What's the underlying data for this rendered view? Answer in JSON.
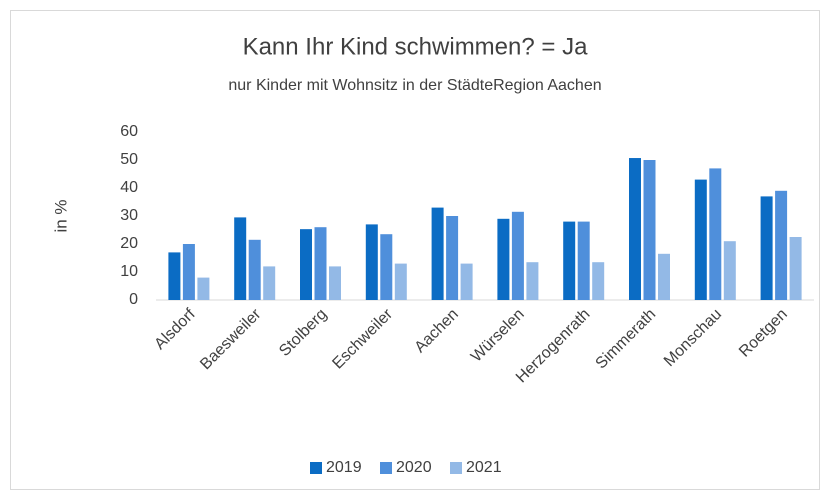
{
  "chart_data": {
    "type": "bar",
    "title": "Kann Ihr Kind schwimmen? = Ja",
    "subtitle": "nur Kinder mit Wohnsitz in der StädteRegion Aachen",
    "y_label": "in %",
    "categories": [
      "Alsdorf",
      "Baesweiler",
      "Stolberg",
      "Eschweiler",
      "Aachen",
      "Würselen",
      "Herzogenrath",
      "Simmerath",
      "Monschau",
      "Roetgen"
    ],
    "series": [
      {
        "name": "2019",
        "color": "#0b6cc4",
        "values": [
          17,
          29.5,
          25.3,
          27,
          33,
          29,
          28,
          50.7,
          43,
          37
        ]
      },
      {
        "name": "2020",
        "color": "#4f8fdb",
        "values": [
          20,
          21.5,
          26,
          23.5,
          30,
          31.5,
          28,
          50,
          47,
          39
        ]
      },
      {
        "name": "2021",
        "color": "#93b9e6",
        "values": [
          8,
          12,
          12,
          13,
          13,
          13.5,
          13.5,
          16.5,
          21,
          22.5
        ]
      }
    ],
    "ylim": [
      0,
      60
    ],
    "yticks": [
      0,
      10,
      20,
      30,
      40,
      50,
      60
    ],
    "grid": false,
    "legend": "bottom"
  }
}
